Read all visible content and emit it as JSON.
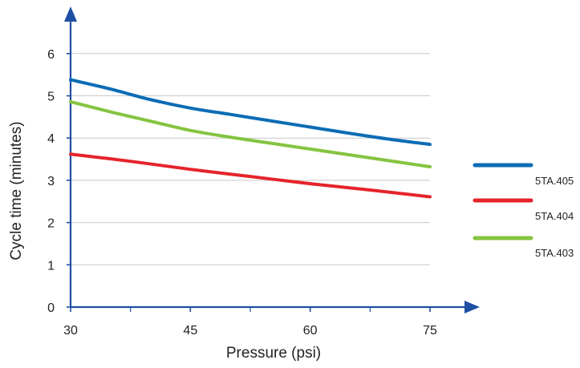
{
  "chart_data": {
    "type": "line",
    "title": "",
    "xlabel": "Pressure (psi)",
    "ylabel": "Cycle time (minutes)",
    "xlim": [
      30,
      75
    ],
    "ylim": [
      0,
      6.5
    ],
    "x_ticks": [
      30,
      45,
      60,
      75
    ],
    "x_minor_ticks": [
      37.5,
      52.5,
      67.5
    ],
    "y_ticks": [
      0,
      1,
      2,
      3,
      4,
      5,
      6
    ],
    "grid": "horizontal",
    "legend_position": "right",
    "axis_color": "#1f4fa3",
    "series": [
      {
        "name": "5TA.405",
        "color": "#0b6cb5",
        "x": [
          30,
          35,
          40,
          45,
          50,
          55,
          60,
          65,
          70,
          75
        ],
        "values": [
          5.38,
          5.16,
          4.91,
          4.71,
          4.56,
          4.41,
          4.26,
          4.11,
          3.97,
          3.85
        ]
      },
      {
        "name": "5TA.404",
        "color": "#e5242a",
        "x": [
          30,
          37.5,
          45,
          52.5,
          60,
          67.5,
          75
        ],
        "values": [
          3.62,
          3.45,
          3.26,
          3.09,
          2.92,
          2.77,
          2.61
        ]
      },
      {
        "name": "5TA.403",
        "color": "#85c440",
        "x": [
          30,
          35,
          40,
          45,
          50,
          55,
          60,
          65,
          70,
          75
        ],
        "values": [
          4.86,
          4.62,
          4.4,
          4.18,
          4.02,
          3.88,
          3.74,
          3.6,
          3.46,
          3.32
        ]
      }
    ]
  }
}
